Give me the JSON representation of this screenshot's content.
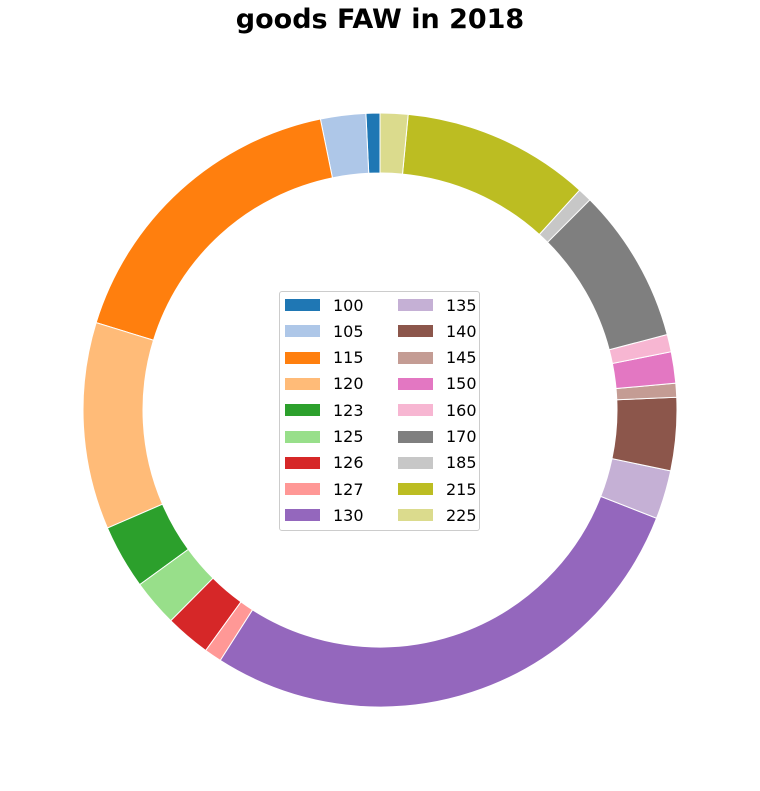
{
  "chart_data": {
    "type": "pie",
    "title": "goods FAW in 2018",
    "categories": [
      "100",
      "105",
      "115",
      "120",
      "123",
      "125",
      "126",
      "127",
      "130",
      "135",
      "140",
      "145",
      "150",
      "160",
      "170",
      "185",
      "215",
      "225"
    ],
    "values": [
      0.8,
      2.6,
      18.0,
      11.9,
      3.7,
      2.7,
      2.6,
      1.0,
      29.7,
      2.8,
      4.2,
      0.8,
      1.8,
      1.0,
      8.9,
      0.8,
      10.8,
      1.6
    ],
    "colors": [
      "#1f77b4",
      "#aec7e8",
      "#ff7f0e",
      "#ffbb78",
      "#2ca02c",
      "#98df8a",
      "#d62728",
      "#ff9896",
      "#9467bd",
      "#c5b0d5",
      "#8c564b",
      "#c49c94",
      "#e377c2",
      "#f7b6d2",
      "#7f7f7f",
      "#c7c7c7",
      "#bcbd22",
      "#dbdb8d"
    ],
    "legend_position": "center",
    "legend_columns": 2
  }
}
